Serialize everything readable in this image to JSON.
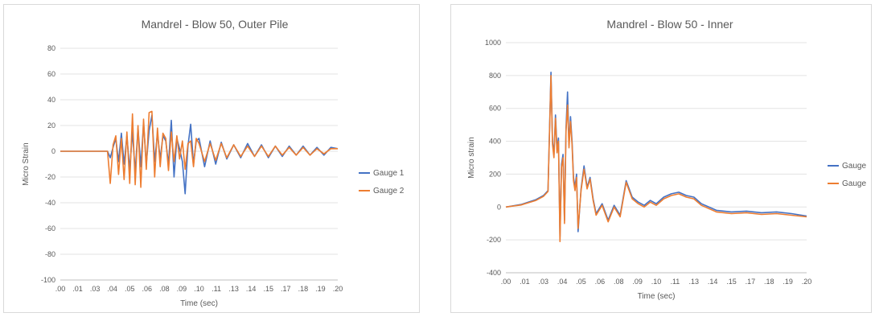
{
  "chart_data": [
    {
      "type": "line",
      "title": "Mandrel - Blow 50, Outer Pile",
      "xlabel": "Time (sec)",
      "ylabel": "Micro Strain",
      "xlim": [
        0,
        0.2
      ],
      "ylim": [
        -100,
        80
      ],
      "x_ticks": [
        ".00",
        ".01",
        ".03",
        ".04",
        ".05",
        ".06",
        ".08",
        ".09",
        ".10",
        ".11",
        ".13",
        ".14",
        ".15",
        ".17",
        ".18",
        ".19",
        ".20"
      ],
      "y_ticks": [
        "80",
        "60",
        "40",
        "20",
        "0",
        "-20",
        "-40",
        "-60",
        "-80",
        "-100"
      ],
      "legend": "right",
      "series": [
        {
          "name": "Gauge 1",
          "color": "#4472c4",
          "x": [
            0,
            0.01,
            0.02,
            0.03,
            0.034,
            0.036,
            0.038,
            0.04,
            0.042,
            0.044,
            0.046,
            0.048,
            0.05,
            0.052,
            0.054,
            0.056,
            0.058,
            0.06,
            0.062,
            0.064,
            0.066,
            0.068,
            0.07,
            0.072,
            0.074,
            0.076,
            0.078,
            0.08,
            0.082,
            0.084,
            0.086,
            0.088,
            0.09,
            0.092,
            0.094,
            0.096,
            0.098,
            0.1,
            0.104,
            0.108,
            0.112,
            0.116,
            0.12,
            0.125,
            0.13,
            0.135,
            0.14,
            0.145,
            0.15,
            0.155,
            0.16,
            0.165,
            0.17,
            0.175,
            0.18,
            0.185,
            0.19,
            0.195,
            0.2
          ],
          "values": [
            0,
            0,
            0,
            0,
            0,
            -5,
            3,
            10,
            -8,
            14,
            -10,
            12,
            -14,
            15,
            -16,
            18,
            -12,
            22,
            -10,
            16,
            28,
            -8,
            14,
            -6,
            12,
            8,
            -10,
            24,
            -20,
            10,
            2,
            -8,
            -33,
            4,
            21,
            -10,
            8,
            10,
            -12,
            8,
            -10,
            7,
            -6,
            5,
            -5,
            6,
            -4,
            5,
            -5,
            4,
            -4,
            4,
            -3,
            4,
            -3,
            3,
            -3,
            3,
            2
          ]
        },
        {
          "name": "Gauge 2",
          "color": "#ed7d31",
          "x": [
            0,
            0.01,
            0.02,
            0.03,
            0.034,
            0.036,
            0.038,
            0.04,
            0.042,
            0.044,
            0.046,
            0.048,
            0.05,
            0.052,
            0.054,
            0.056,
            0.058,
            0.06,
            0.062,
            0.064,
            0.066,
            0.068,
            0.07,
            0.072,
            0.074,
            0.076,
            0.078,
            0.08,
            0.082,
            0.084,
            0.086,
            0.088,
            0.09,
            0.092,
            0.094,
            0.096,
            0.098,
            0.1,
            0.104,
            0.108,
            0.112,
            0.116,
            0.12,
            0.125,
            0.13,
            0.135,
            0.14,
            0.145,
            0.15,
            0.155,
            0.16,
            0.165,
            0.17,
            0.175,
            0.18,
            0.185,
            0.19,
            0.195,
            0.2
          ],
          "values": [
            0,
            0,
            0,
            0,
            0,
            -25,
            5,
            12,
            -18,
            10,
            -22,
            15,
            -25,
            29,
            -26,
            20,
            -28,
            25,
            -14,
            30,
            31,
            -20,
            18,
            -12,
            14,
            10,
            -15,
            15,
            -8,
            12,
            -6,
            8,
            -14,
            6,
            8,
            -12,
            10,
            6,
            -8,
            6,
            -7,
            6,
            -5,
            5,
            -4,
            4,
            -4,
            4,
            -4,
            4,
            -3,
            3,
            -3,
            3,
            -3,
            2,
            -2,
            2,
            2
          ]
        }
      ]
    },
    {
      "type": "line",
      "title": "Mandrel - Blow 50 - Inner",
      "xlabel": "Time (sec)",
      "ylabel": "Micro strain",
      "xlim": [
        0,
        0.2
      ],
      "ylim": [
        -400,
        1000
      ],
      "x_ticks": [
        ".00",
        ".01",
        ".03",
        ".04",
        ".05",
        ".06",
        ".08",
        ".09",
        ".10",
        ".11",
        ".13",
        ".14",
        ".15",
        ".17",
        ".18",
        ".19",
        ".20"
      ],
      "y_ticks": [
        "1000",
        "800",
        "600",
        "400",
        "200",
        "0",
        "-200",
        "-400"
      ],
      "legend": "right",
      "series": [
        {
          "name": "Gauge",
          "color": "#4472c4",
          "x": [
            0,
            0.01,
            0.02,
            0.025,
            0.028,
            0.03,
            0.031,
            0.032,
            0.033,
            0.034,
            0.035,
            0.036,
            0.037,
            0.038,
            0.039,
            0.04,
            0.041,
            0.042,
            0.043,
            0.044,
            0.045,
            0.046,
            0.047,
            0.048,
            0.05,
            0.052,
            0.054,
            0.056,
            0.058,
            0.06,
            0.064,
            0.068,
            0.072,
            0.076,
            0.08,
            0.084,
            0.088,
            0.092,
            0.096,
            0.1,
            0.105,
            0.11,
            0.115,
            0.12,
            0.125,
            0.13,
            0.14,
            0.15,
            0.16,
            0.17,
            0.18,
            0.19,
            0.2
          ],
          "values": [
            0,
            15,
            45,
            70,
            100,
            820,
            400,
            320,
            560,
            350,
            420,
            -180,
            260,
            320,
            -80,
            480,
            700,
            380,
            550,
            400,
            180,
            120,
            200,
            -150,
            110,
            250,
            120,
            180,
            50,
            -40,
            20,
            -80,
            10,
            -50,
            160,
            60,
            30,
            10,
            40,
            20,
            60,
            80,
            90,
            70,
            60,
            20,
            -20,
            -30,
            -25,
            -35,
            -30,
            -40,
            -55
          ]
        },
        {
          "name": "Gauge",
          "color": "#ed7d31",
          "x": [
            0,
            0.01,
            0.02,
            0.025,
            0.028,
            0.03,
            0.031,
            0.032,
            0.033,
            0.034,
            0.035,
            0.036,
            0.037,
            0.038,
            0.039,
            0.04,
            0.041,
            0.042,
            0.043,
            0.044,
            0.045,
            0.046,
            0.047,
            0.048,
            0.05,
            0.052,
            0.054,
            0.056,
            0.058,
            0.06,
            0.064,
            0.068,
            0.072,
            0.076,
            0.08,
            0.084,
            0.088,
            0.092,
            0.096,
            0.1,
            0.105,
            0.11,
            0.115,
            0.12,
            0.125,
            0.13,
            0.14,
            0.15,
            0.16,
            0.17,
            0.18,
            0.19,
            0.2
          ],
          "values": [
            0,
            12,
            40,
            65,
            95,
            800,
            380,
            300,
            540,
            330,
            400,
            -210,
            240,
            300,
            -100,
            460,
            620,
            360,
            520,
            380,
            160,
            100,
            180,
            -130,
            100,
            230,
            110,
            170,
            40,
            -50,
            10,
            -90,
            0,
            -60,
            150,
            50,
            20,
            0,
            30,
            10,
            50,
            70,
            80,
            60,
            50,
            10,
            -30,
            -40,
            -35,
            -45,
            -40,
            -50,
            -60
          ]
        }
      ]
    }
  ]
}
